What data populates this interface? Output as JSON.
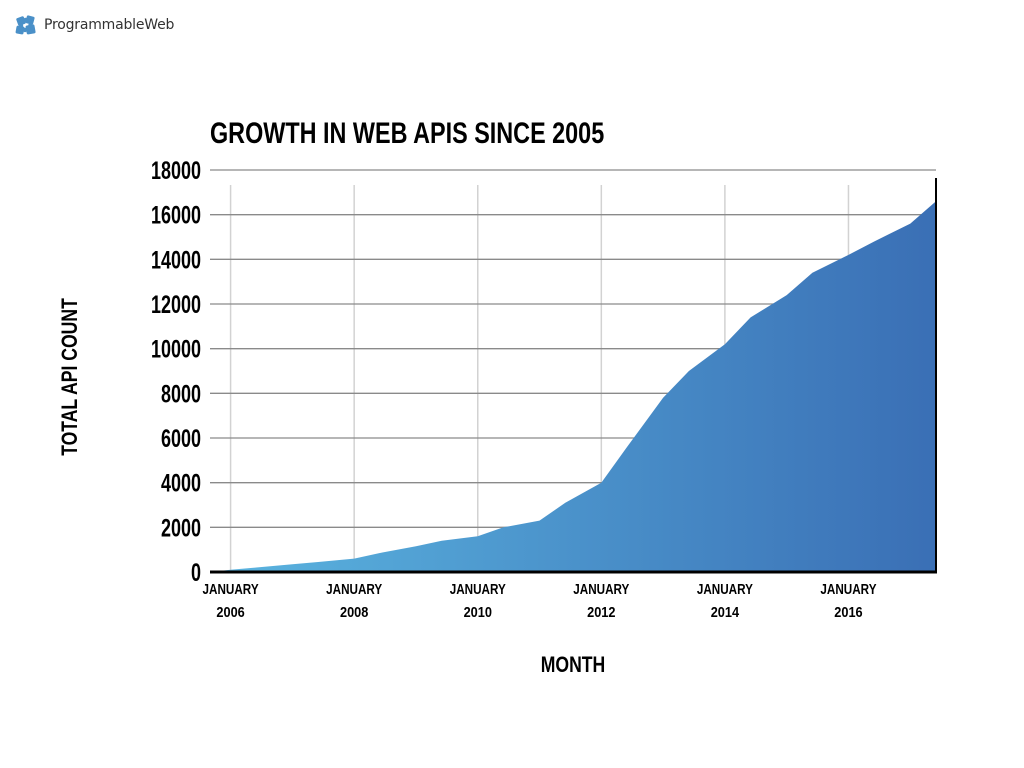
{
  "brand": {
    "name": "ProgrammableWeb",
    "logo_icon": "puzzle-piece-icon",
    "logo_color": "#4a90c8"
  },
  "chart_data": {
    "type": "area",
    "title": "GROWTH IN WEB APIS SINCE 2005",
    "xlabel": "MONTH",
    "ylabel": "TOTAL API COUNT",
    "ylim": [
      0,
      18000
    ],
    "yticks": [
      "0",
      "2000",
      "4000",
      "6000",
      "8000",
      "10000",
      "12000",
      "14000",
      "16000",
      "18000"
    ],
    "xticks": [
      {
        "month": "JANUARY",
        "year": "2006"
      },
      {
        "month": "JANUARY",
        "year": "2008"
      },
      {
        "month": "JANUARY",
        "year": "2010"
      },
      {
        "month": "JANUARY",
        "year": "2012"
      },
      {
        "month": "JANUARY",
        "year": "2014"
      },
      {
        "month": "JANUARY",
        "year": "2016"
      }
    ],
    "grid": true,
    "series": [
      {
        "color_start": "#5bb5e0",
        "color_end": "#3a6fb5",
        "x": [
          "2005-09",
          "2006-01",
          "2006-06",
          "2007-01",
          "2007-06",
          "2008-01",
          "2008-06",
          "2009-01",
          "2009-06",
          "2010-01",
          "2010-06",
          "2011-01",
          "2011-06",
          "2012-01",
          "2012-06",
          "2013-01",
          "2013-06",
          "2014-01",
          "2014-06",
          "2015-01",
          "2015-06",
          "2016-01",
          "2016-06",
          "2017-01",
          "2017-06"
        ],
        "values": [
          0,
          100,
          200,
          350,
          450,
          600,
          850,
          1150,
          1400,
          1600,
          2000,
          2300,
          3100,
          4000,
          5600,
          7800,
          9000,
          10200,
          11400,
          12400,
          13400,
          14200,
          14800,
          15600,
          16600
        ]
      }
    ]
  }
}
